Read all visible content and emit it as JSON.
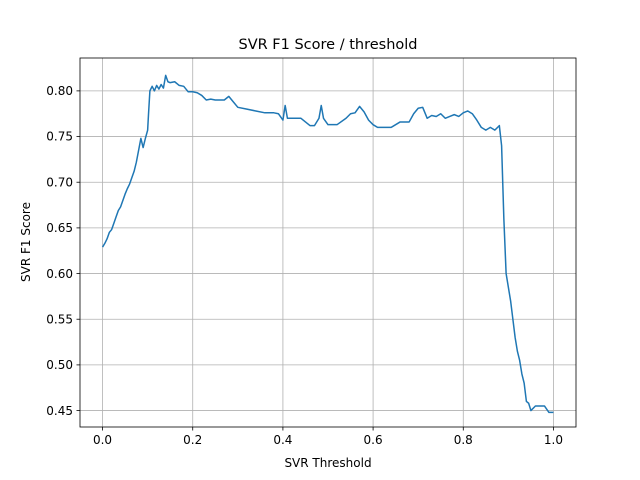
{
  "chart_data": {
    "type": "line",
    "title": "SVR F1 Score / threshold",
    "xlabel": "SVR Threshold",
    "ylabel": "SVR F1 Score",
    "xlim": [
      -0.05,
      1.05
    ],
    "ylim": [
      0.432,
      0.836
    ],
    "xticks": [
      0.0,
      0.2,
      0.4,
      0.6,
      0.8,
      1.0
    ],
    "xtick_labels": [
      "0.0",
      "0.2",
      "0.4",
      "0.6",
      "0.8",
      "1.0"
    ],
    "yticks": [
      0.45,
      0.5,
      0.55,
      0.6,
      0.65,
      0.7,
      0.75,
      0.8
    ],
    "ytick_labels": [
      "0.45",
      "0.50",
      "0.55",
      "0.60",
      "0.65",
      "0.70",
      "0.75",
      "0.80"
    ],
    "grid": true,
    "line_color": "#1f77b4",
    "series": [
      {
        "name": "",
        "x": [
          0.0,
          0.005,
          0.01,
          0.015,
          0.02,
          0.025,
          0.03,
          0.035,
          0.04,
          0.045,
          0.05,
          0.055,
          0.06,
          0.065,
          0.07,
          0.075,
          0.08,
          0.085,
          0.09,
          0.095,
          0.1,
          0.102,
          0.105,
          0.11,
          0.115,
          0.12,
          0.125,
          0.13,
          0.135,
          0.14,
          0.145,
          0.15,
          0.16,
          0.17,
          0.18,
          0.19,
          0.2,
          0.21,
          0.22,
          0.23,
          0.24,
          0.25,
          0.26,
          0.27,
          0.28,
          0.29,
          0.3,
          0.32,
          0.34,
          0.36,
          0.38,
          0.39,
          0.4,
          0.405,
          0.41,
          0.42,
          0.44,
          0.46,
          0.47,
          0.48,
          0.485,
          0.49,
          0.5,
          0.52,
          0.54,
          0.55,
          0.56,
          0.57,
          0.58,
          0.59,
          0.6,
          0.61,
          0.62,
          0.64,
          0.66,
          0.68,
          0.69,
          0.7,
          0.71,
          0.72,
          0.73,
          0.74,
          0.75,
          0.76,
          0.77,
          0.78,
          0.79,
          0.8,
          0.81,
          0.82,
          0.83,
          0.84,
          0.85,
          0.86,
          0.87,
          0.88,
          0.885,
          0.89,
          0.895,
          0.9,
          0.905,
          0.91,
          0.915,
          0.92,
          0.925,
          0.93,
          0.935,
          0.94,
          0.945,
          0.95,
          0.96,
          0.97,
          0.98,
          0.99,
          1.0
        ],
        "y": [
          0.629,
          0.633,
          0.638,
          0.645,
          0.648,
          0.655,
          0.662,
          0.669,
          0.673,
          0.68,
          0.687,
          0.693,
          0.698,
          0.705,
          0.712,
          0.722,
          0.735,
          0.748,
          0.738,
          0.748,
          0.757,
          0.775,
          0.8,
          0.805,
          0.8,
          0.806,
          0.802,
          0.807,
          0.803,
          0.817,
          0.81,
          0.809,
          0.81,
          0.806,
          0.805,
          0.799,
          0.799,
          0.798,
          0.795,
          0.79,
          0.791,
          0.79,
          0.79,
          0.79,
          0.794,
          0.788,
          0.782,
          0.78,
          0.778,
          0.776,
          0.776,
          0.775,
          0.768,
          0.784,
          0.77,
          0.77,
          0.77,
          0.762,
          0.762,
          0.77,
          0.784,
          0.77,
          0.763,
          0.763,
          0.77,
          0.775,
          0.776,
          0.783,
          0.777,
          0.768,
          0.763,
          0.76,
          0.76,
          0.76,
          0.766,
          0.766,
          0.775,
          0.781,
          0.782,
          0.77,
          0.773,
          0.772,
          0.775,
          0.77,
          0.772,
          0.774,
          0.772,
          0.776,
          0.778,
          0.775,
          0.768,
          0.76,
          0.757,
          0.76,
          0.757,
          0.762,
          0.74,
          0.66,
          0.6,
          0.585,
          0.57,
          0.55,
          0.53,
          0.515,
          0.505,
          0.49,
          0.48,
          0.46,
          0.458,
          0.45,
          0.455,
          0.455,
          0.455,
          0.448,
          0.448
        ]
      }
    ]
  }
}
